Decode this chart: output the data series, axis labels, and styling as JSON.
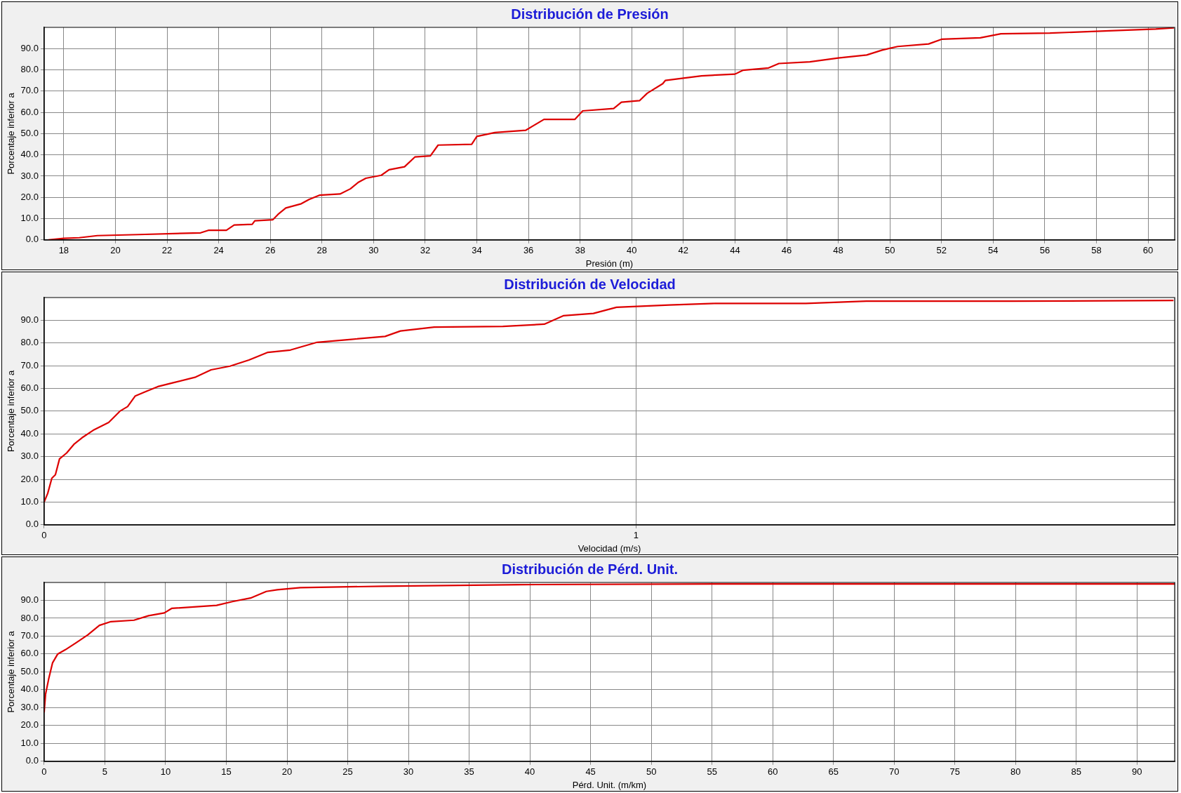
{
  "chart_data": [
    {
      "type": "line",
      "title": "Distribución de Presión",
      "xlabel": "Presión (m)",
      "ylabel": "Porcentaje inferior a",
      "grid": true,
      "legend": false,
      "xlim": [
        17.24,
        61.03
      ],
      "xticks": [
        18,
        20,
        22,
        24,
        26,
        28,
        30,
        32,
        34,
        36,
        38,
        40,
        42,
        44,
        46,
        48,
        50,
        52,
        54,
        56,
        58,
        60
      ],
      "ylim": [
        0,
        100
      ],
      "yticks": [
        {
          "value": 0,
          "label": "0.0"
        },
        {
          "value": 10,
          "label": "10.0"
        },
        {
          "value": 20,
          "label": "20.0"
        },
        {
          "value": 30,
          "label": "30.0"
        },
        {
          "value": 40,
          "label": "40.0"
        },
        {
          "value": 50,
          "label": "50.0"
        },
        {
          "value": 60,
          "label": "60.0"
        },
        {
          "value": 70,
          "label": "70.0"
        },
        {
          "value": 80,
          "label": "80.0"
        },
        {
          "value": 90,
          "label": "90.0"
        }
      ],
      "series": [
        {
          "color": "#dd0000",
          "x": [
            17.4,
            18.0,
            18.6,
            19.3,
            20.9,
            23.3,
            23.6,
            24.3,
            24.6,
            25.3,
            25.4,
            26.1,
            26.3,
            26.6,
            27.2,
            27.5,
            27.9,
            28.7,
            29.1,
            29.4,
            29.7,
            30.3,
            30.6,
            31.2,
            31.6,
            32.2,
            32.5,
            33.8,
            34.0,
            34.7,
            35.9,
            36.2,
            36.6,
            37.8,
            38.1,
            39.3,
            39.6,
            40.3,
            40.6,
            41.2,
            41.3,
            42.7,
            44.0,
            44.3,
            45.3,
            45.7,
            46.9,
            48.0,
            49.1,
            49.7,
            50.3,
            51.5,
            52.0,
            53.5,
            54.3,
            56.2,
            58.5,
            60.3,
            61.0
          ],
          "values": [
            0,
            0.7,
            1,
            2,
            2.5,
            3.3,
            4.5,
            4.5,
            7,
            7.3,
            9,
            9.5,
            12,
            15,
            17,
            19,
            21,
            21.6,
            24,
            27,
            29,
            30.4,
            33,
            34.4,
            39,
            39.5,
            44.6,
            45,
            48.7,
            50.5,
            51.6,
            53.8,
            56.7,
            56.7,
            60.7,
            61.8,
            64.8,
            65.5,
            69,
            73.5,
            75,
            77.2,
            78,
            79.8,
            80.9,
            83,
            83.8,
            85.6,
            87,
            89.3,
            91,
            92.2,
            94.4,
            95.1,
            97,
            97.3,
            98.4,
            99.2,
            99.8
          ]
        }
      ]
    },
    {
      "type": "line",
      "title": "Distribución de Velocidad",
      "xlabel": "Velocidad (m/s)",
      "ylabel": "Porcentaje inferior a",
      "grid": true,
      "legend": false,
      "xlim": [
        0,
        1.91
      ],
      "xticks": [
        0,
        1
      ],
      "ylim": [
        0,
        100
      ],
      "yticks": [
        {
          "value": 0,
          "label": "0.0"
        },
        {
          "value": 10,
          "label": "10.0"
        },
        {
          "value": 20,
          "label": "20.0"
        },
        {
          "value": 30,
          "label": "30.0"
        },
        {
          "value": 40,
          "label": "40.0"
        },
        {
          "value": 50,
          "label": "50.0"
        },
        {
          "value": 60,
          "label": "60.0"
        },
        {
          "value": 70,
          "label": "70.0"
        },
        {
          "value": 80,
          "label": "80.0"
        },
        {
          "value": 90,
          "label": "90.0"
        }
      ],
      "series": [
        {
          "color": "#dd0000",
          "x": [
            0,
            0.006,
            0.013,
            0.019,
            0.026,
            0.038,
            0.051,
            0.064,
            0.083,
            0.109,
            0.128,
            0.141,
            0.154,
            0.173,
            0.192,
            0.218,
            0.256,
            0.282,
            0.314,
            0.346,
            0.378,
            0.416,
            0.461,
            0.519,
            0.576,
            0.602,
            0.659,
            0.775,
            0.845,
            0.877,
            0.928,
            0.967,
            1.056,
            1.133,
            1.287,
            1.389,
            1.633,
            1.908
          ],
          "values": [
            10,
            13.8,
            20.5,
            22,
            29,
            31.6,
            35.6,
            38.3,
            41.6,
            45,
            50,
            52,
            56.7,
            58.8,
            60.8,
            62.5,
            65,
            68.2,
            69.8,
            72.5,
            75.9,
            76.9,
            80.3,
            81.6,
            82.9,
            85.3,
            87,
            87.3,
            88.3,
            92,
            93,
            95.7,
            96.7,
            97.4,
            97.4,
            98.4,
            98.4,
            98.7
          ]
        }
      ]
    },
    {
      "type": "line",
      "title": "Distribución de Pérd. Unit.",
      "xlabel": "Pérd. Unit. (m/km)",
      "ylabel": "Porcentaje inferior a",
      "grid": true,
      "legend": false,
      "xlim": [
        0,
        93.1
      ],
      "xticks": [
        0,
        5,
        10,
        15,
        20,
        25,
        30,
        35,
        40,
        45,
        50,
        55,
        60,
        65,
        70,
        75,
        80,
        85,
        90
      ],
      "ylim": [
        0,
        100
      ],
      "yticks": [
        {
          "value": 0,
          "label": "0.0"
        },
        {
          "value": 10,
          "label": "10.0"
        },
        {
          "value": 20,
          "label": "20.0"
        },
        {
          "value": 30,
          "label": "30.0"
        },
        {
          "value": 40,
          "label": "40.0"
        },
        {
          "value": 50,
          "label": "50.0"
        },
        {
          "value": 60,
          "label": "60.0"
        },
        {
          "value": 70,
          "label": "70.0"
        },
        {
          "value": 80,
          "label": "80.0"
        },
        {
          "value": 90,
          "label": "90.0"
        }
      ],
      "series": [
        {
          "color": "#dd0000",
          "x": [
            0,
            0.12,
            0.37,
            0.69,
            1.12,
            1.75,
            2.68,
            3.6,
            4.55,
            5.5,
            7.4,
            8.6,
            9.9,
            10.5,
            14.2,
            15.5,
            17.0,
            18.3,
            19.2,
            21.1,
            27.9,
            39.2,
            57.9,
            93.1
          ],
          "values": [
            27.3,
            37.6,
            45.9,
            55,
            60,
            62.4,
            66.5,
            70.7,
            76,
            78.1,
            78.9,
            81.4,
            83,
            85.5,
            87.2,
            89.3,
            91.3,
            95,
            95.9,
            97.1,
            97.9,
            98.8,
            99.2,
            99.2
          ]
        }
      ]
    }
  ]
}
